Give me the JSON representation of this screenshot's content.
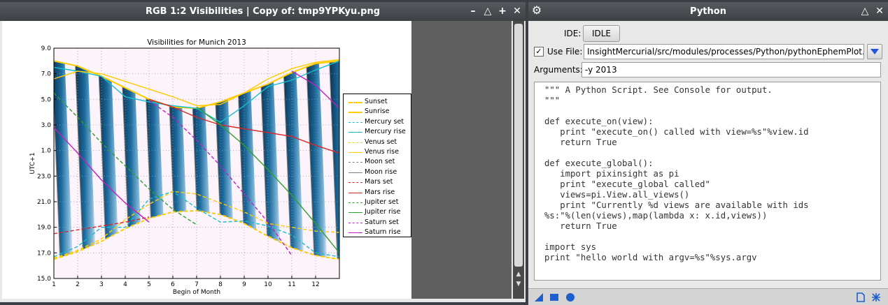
{
  "left_window": {
    "title": "RGB 1:2 Visibilities | Copy of: tmp9YPKyu.png",
    "buttons": [
      "minimize",
      "shade",
      "maximize",
      "close"
    ]
  },
  "right_window": {
    "title": "Python",
    "ide_label": "IDE:",
    "ide_button": "IDLE",
    "use_file_label": "Use File:",
    "use_file_checked": true,
    "file_path": "InsightMercurial/src/modules/processes/Python/pythonEphemPlot.py",
    "arguments_label": "Arguments:",
    "arguments_value": "-y 2013",
    "code_lines": [
      "\"\"\" A Python Script. See Console for output.",
      "\"\"\"",
      "",
      "def execute_on(view):",
      "   print \"execute_on() called with view=%s\"%view.id",
      "   return True",
      "",
      "def execute_global():",
      "   import pixinsight as pi",
      "   print \"execute_global called\"",
      "   views=pi.View.all_views()",
      "   print \"Currently %d views are available with ids",
      "%s:\"%(len(views),map(lambda x: x.id,views))",
      "   return True",
      "",
      "import sys",
      "print \"hello world with argv=%s\"%sys.argv"
    ]
  },
  "chart_data": {
    "type": "line",
    "title": "Visibilities for Munich 2013",
    "xlabel": "Begin of Month",
    "ylabel": "UTC+1",
    "xlim": [
      1,
      13
    ],
    "x_ticks": [
      "1",
      "2",
      "3",
      "4",
      "5",
      "6",
      "7",
      "8",
      "9",
      "10",
      "11",
      "12"
    ],
    "y_ticks": [
      "15.0",
      "17.0",
      "19.0",
      "21.0",
      "23.0",
      "1.0",
      "3.0",
      "5.0",
      "7.0",
      "9.0"
    ],
    "y_tick_values": [
      15,
      17,
      19,
      21,
      23,
      25,
      27,
      29,
      31,
      33
    ],
    "ylim": [
      15,
      33
    ],
    "grid": true,
    "legend_position": "right",
    "series": [
      {
        "name": "Sunset",
        "color": "#ffcc00",
        "style": "dashed",
        "x": [
          1,
          2,
          3,
          4,
          5,
          6,
          7,
          8,
          9,
          10,
          11,
          12,
          13
        ],
        "y": [
          16.5,
          17.1,
          17.9,
          18.9,
          19.7,
          20.2,
          20.3,
          20.0,
          19.3,
          18.3,
          17.4,
          16.8,
          16.5
        ]
      },
      {
        "name": "Sunrise",
        "color": "#ffcc00",
        "style": "solid",
        "x": [
          1,
          2,
          3,
          4,
          5,
          6,
          7,
          8,
          9,
          10,
          11,
          12,
          13
        ],
        "y": [
          32.0,
          31.6,
          30.8,
          29.9,
          29.0,
          28.4,
          28.3,
          28.8,
          29.5,
          30.2,
          31.1,
          31.8,
          32.0
        ]
      },
      {
        "name": "Mercury set",
        "color": "#17becf",
        "style": "dashed",
        "x": [
          1,
          2,
          3,
          4,
          5,
          6,
          7,
          8,
          9,
          10,
          11,
          12,
          13
        ],
        "y": [
          16.7,
          17.5,
          19.0,
          19.0,
          21.2,
          21.8,
          20.5,
          19.4,
          19.5,
          19.1,
          18.4,
          17.0,
          16.7
        ]
      },
      {
        "name": "Mercury rise",
        "color": "#17becf",
        "style": "solid",
        "x": [
          1,
          2,
          3,
          4,
          5,
          6,
          7,
          8,
          9,
          10,
          11,
          12,
          13
        ],
        "y": [
          31.5,
          31.2,
          30.8,
          29.2,
          28.8,
          28.5,
          28.3,
          27.2,
          28.5,
          30.0,
          30.5,
          31.3,
          32.0
        ]
      },
      {
        "name": "Venus set",
        "color": "#ffcc00",
        "style": "dashed",
        "x": [
          1,
          2,
          3,
          4,
          5,
          6,
          7,
          8,
          9,
          10,
          11,
          12,
          13
        ],
        "y": [
          16.6,
          17.2,
          18.1,
          19.6,
          20.8,
          21.8,
          21.6,
          20.9,
          20.2,
          19.3,
          19.0,
          18.7,
          18.6
        ]
      },
      {
        "name": "Venus rise",
        "color": "#ffcc00",
        "style": "solid",
        "x": [
          1,
          2,
          3,
          4,
          5,
          6,
          7,
          8,
          9,
          10,
          11,
          12,
          13
        ],
        "y": [
          30.6,
          31.2,
          31.0,
          30.4,
          29.8,
          29.2,
          28.5,
          28.6,
          29.5,
          30.6,
          31.4,
          31.9,
          32.1
        ]
      },
      {
        "name": "Moon set",
        "color": "#7f7f7f",
        "style": "dashed",
        "x": [],
        "y": []
      },
      {
        "name": "Moon rise",
        "color": "#7f7f7f",
        "style": "solid",
        "x": [],
        "y": []
      },
      {
        "name": "Mars set",
        "color": "#d62728",
        "style": "dashed",
        "x": [
          1,
          2,
          3,
          4,
          5
        ],
        "y": [
          18.5,
          18.8,
          19.1,
          19.4,
          19.8
        ]
      },
      {
        "name": "Mars rise",
        "color": "#d62728",
        "style": "solid",
        "x": [
          5,
          6,
          7,
          8,
          9,
          10,
          11,
          12,
          13
        ],
        "y": [
          29.0,
          28.4,
          27.6,
          27.0,
          26.7,
          26.4,
          26.1,
          25.4,
          24.8
        ]
      },
      {
        "name": "Jupiter set",
        "color": "#2ca02c",
        "style": "dashed",
        "x": [
          1,
          2,
          3,
          4,
          5,
          6,
          7
        ],
        "y": [
          29.5,
          27.6,
          25.6,
          23.8,
          22.0,
          20.4,
          19.2
        ]
      },
      {
        "name": "Jupiter rise",
        "color": "#2ca02c",
        "style": "solid",
        "x": [
          7,
          8,
          9,
          10,
          11,
          12,
          13
        ],
        "y": [
          28.4,
          27.0,
          25.4,
          23.5,
          21.5,
          19.3,
          17.0
        ]
      },
      {
        "name": "Saturn set",
        "color": "#c020c0",
        "style": "dashed",
        "x": [
          5,
          6,
          7,
          8,
          9,
          10,
          11
        ],
        "y": [
          28.9,
          27.6,
          25.8,
          23.8,
          21.6,
          19.4,
          16.8
        ]
      },
      {
        "name": "Saturn rise",
        "color": "#c020c0",
        "style": "solid",
        "x": [
          1,
          2,
          3,
          4,
          5,
          11,
          12,
          13
        ],
        "y": [
          26.8,
          24.8,
          22.7,
          20.9,
          19.4,
          31.2,
          30.1,
          28.3
        ]
      }
    ]
  }
}
